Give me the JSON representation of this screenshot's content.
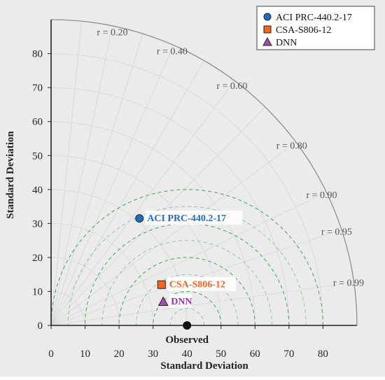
{
  "chart_data": {
    "type": "scatter",
    "subtype": "taylor-diagram",
    "xlabel": "Standard Deviation",
    "ylabel": "Standard Deviation",
    "xlim": [
      0,
      90
    ],
    "ylim": [
      0,
      90
    ],
    "x_ticks": [
      "0",
      "10",
      "20",
      "30",
      "40",
      "50",
      "60",
      "70",
      "80"
    ],
    "y_ticks": [
      "0",
      "10",
      "20",
      "30",
      "40",
      "50",
      "60",
      "70",
      "80"
    ],
    "correlation_labels": [
      "r = 0.20",
      "r = 0.40",
      "r = 0.60",
      "r = 0.80",
      "r = 0.90",
      "r = 0.95",
      "r = 0.99"
    ],
    "correlation_values": [
      0.2,
      0.4,
      0.6,
      0.8,
      0.9,
      0.95,
      0.99
    ],
    "rms_contours": [
      10,
      20,
      30,
      40
    ],
    "observed": {
      "label": "Observed",
      "x": 40,
      "y": 0
    },
    "series": [
      {
        "name": "ACI PRC-440.2-17",
        "marker": "circle",
        "color": "#1f6fc1",
        "label_color": "#1f6fc1",
        "x": 26,
        "y": 31.5
      },
      {
        "name": "CSA-S806-12",
        "marker": "square",
        "color": "#f26522",
        "label_color": "#f26522",
        "x": 32.5,
        "y": 12
      },
      {
        "name": "DNN",
        "marker": "triangle",
        "color": "#a050b0",
        "label_color": "#8e3aa3",
        "x": 33,
        "y": 7
      }
    ],
    "grid": true,
    "legend_position": "top-right",
    "background": "#ebebeb"
  }
}
